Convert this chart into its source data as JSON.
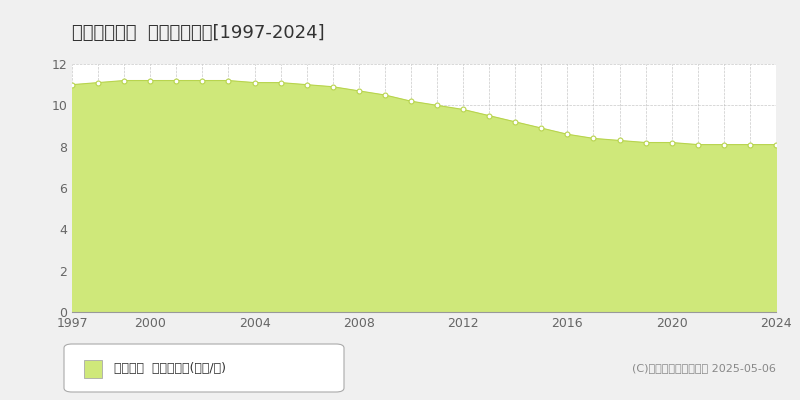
{
  "title": "都城市下川東  基準地価推移[1997-2024]",
  "years": [
    1997,
    1998,
    1999,
    2000,
    2001,
    2002,
    2003,
    2004,
    2005,
    2006,
    2007,
    2008,
    2009,
    2010,
    2011,
    2012,
    2013,
    2014,
    2015,
    2016,
    2017,
    2018,
    2019,
    2020,
    2021,
    2022,
    2023,
    2024
  ],
  "values": [
    11.0,
    11.1,
    11.2,
    11.2,
    11.2,
    11.2,
    11.2,
    11.1,
    11.1,
    11.0,
    10.9,
    10.7,
    10.5,
    10.2,
    10.0,
    9.8,
    9.5,
    9.2,
    8.9,
    8.6,
    8.4,
    8.3,
    8.2,
    8.2,
    8.1,
    8.1,
    8.1,
    8.1
  ],
  "fill_color": "#cfe87a",
  "line_color": "#b8d44e",
  "marker_face_color": "#ffffff",
  "marker_edge_color": "#b8d44e",
  "background_color": "#f0f0f0",
  "plot_bg_color": "#ffffff",
  "grid_color": "#bbbbbb",
  "title_color": "#333333",
  "tick_color": "#666666",
  "ylim": [
    0,
    12
  ],
  "yticks": [
    0,
    2,
    4,
    6,
    8,
    10,
    12
  ],
  "xticks": [
    1997,
    2000,
    2004,
    2008,
    2012,
    2016,
    2020,
    2024
  ],
  "legend_label": "基準地価  平均坪単価(万円/坪)",
  "legend_square_color": "#cfe87a",
  "copyright_text": "(C)土地価格ドットコム 2025-05-06",
  "title_fontsize": 13,
  "tick_fontsize": 9,
  "legend_fontsize": 9,
  "copyright_fontsize": 8
}
